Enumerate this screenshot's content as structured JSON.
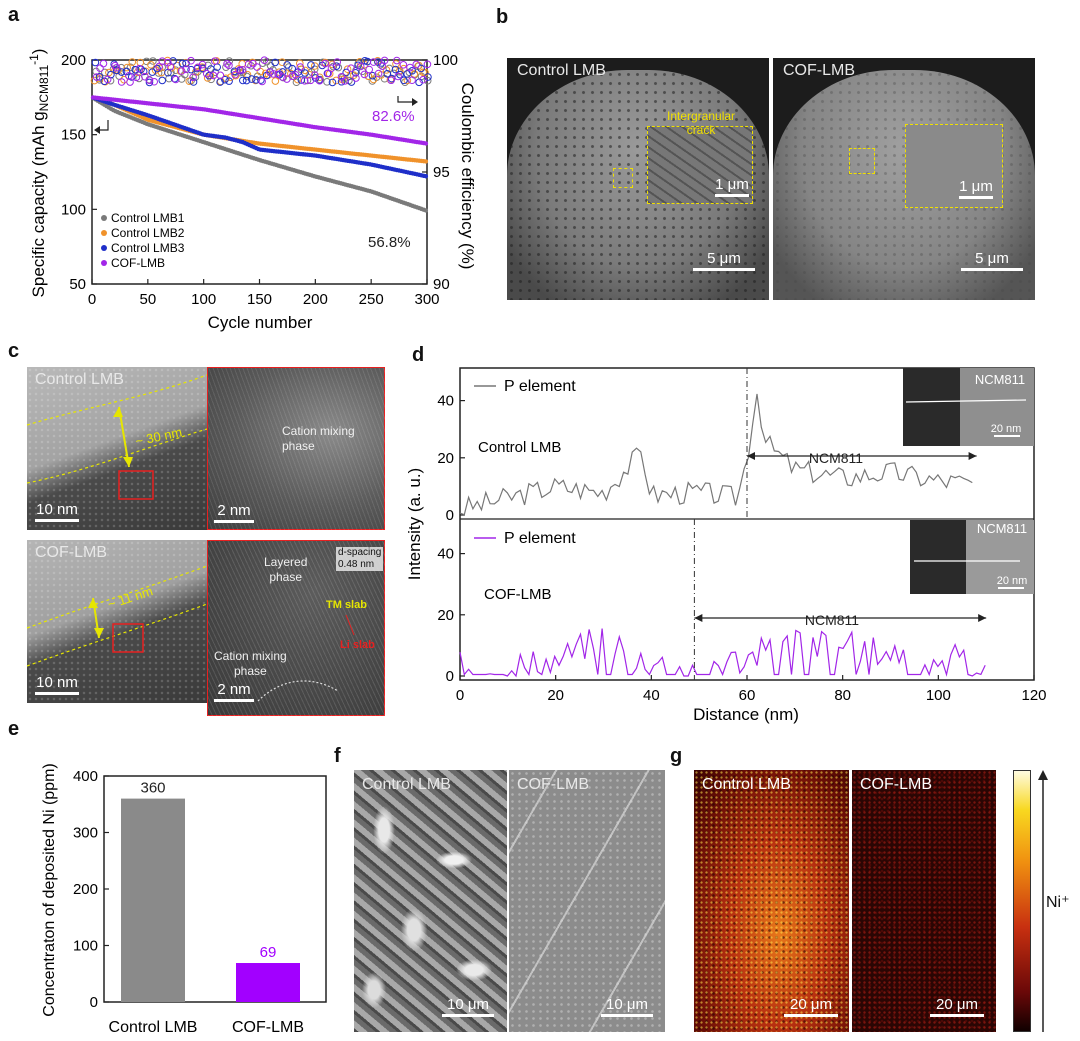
{
  "panels": {
    "a": {
      "label": "a",
      "left_axis_label": "Specific capacity (mAh g",
      "left_axis_sub": "NCM811",
      "left_axis_sup": "-1",
      "left_axis_close": ")",
      "right_axis_label": "Coulombic efficiency (%)",
      "xlabel": "Cycle number",
      "annotation_cof": "82.6%",
      "annotation_ctrl": "56.8%"
    },
    "b": {
      "label": "b",
      "left_title": "Control LMB",
      "right_title": "COF-LMB",
      "crack_label_1": "Intergranular",
      "crack_label_2": "crack",
      "inset_scale": "1 μm",
      "main_scale": "5 μm"
    },
    "c": {
      "label": "c",
      "top_title": "Control LMB",
      "top_thickness": "~ 30 nm",
      "top_scale_left": "10 nm",
      "top_scale_right": "2 nm",
      "top_phase": "Cation mixing phase",
      "bottom_title": "COF-LMB",
      "bottom_thickness": "~ 11 nm",
      "bottom_scale_left": "10 nm",
      "bottom_scale_right": "2 nm",
      "layered_phase_1": "Layered",
      "layered_phase_2": "phase",
      "dspacing_1": "d-spacing",
      "dspacing_2": "0.48 nm",
      "tm_slab": "TM slab",
      "li_slab": "Li slab",
      "cation_mixing_1": "Cation mixing",
      "cation_mixing_2": "phase"
    },
    "d": {
      "label": "d",
      "ylabel": "Intensity (a. u.)",
      "xlabel": "Distance (nm)",
      "top_legend": "P element",
      "top_sample": "Control LMB",
      "top_region": "NCM811",
      "top_inset_title": "NCM811",
      "top_inset_scale": "20 nm",
      "bottom_legend": "P element",
      "bottom_sample": "COF-LMB",
      "bottom_region": "NCM811",
      "bottom_inset_title": "NCM811",
      "bottom_inset_scale": "20 nm"
    },
    "e": {
      "label": "e",
      "ylabel": "Concentraton of deposited Ni (ppm)"
    },
    "f": {
      "label": "f",
      "left_title": "Control LMB",
      "right_title": "COF-LMB",
      "left_scale": "10 μm",
      "right_scale": "10 μm"
    },
    "g": {
      "label": "g",
      "left_title": "Control LMB",
      "right_title": "COF-LMB",
      "left_scale": "20 μm",
      "right_scale": "20 μm",
      "colorbar_label": "Ni⁺"
    }
  },
  "chart_data": [
    {
      "panel": "a",
      "type": "scatter",
      "xlim": [
        0,
        300
      ],
      "ylim": [
        50,
        200
      ],
      "y2lim": [
        90,
        100
      ],
      "xticks": [
        "0",
        "50",
        "100",
        "150",
        "200",
        "250",
        "300"
      ],
      "yticks": [
        "50",
        "100",
        "150",
        "200"
      ],
      "y2ticks": [
        "90",
        "95",
        "100"
      ],
      "series": [
        {
          "name": "Control LMB1",
          "color": "#7a7a7a",
          "x": [
            0,
            20,
            50,
            100,
            150,
            200,
            250,
            300
          ],
          "y": [
            175,
            166,
            157,
            145,
            133,
            122,
            112,
            99
          ]
        },
        {
          "name": "Control LMB2",
          "color": "#f0922b",
          "x": [
            0,
            20,
            50,
            100,
            150,
            200,
            250,
            300
          ],
          "y": [
            175,
            170,
            160,
            150,
            144,
            140,
            136,
            132
          ]
        },
        {
          "name": "Control LMB3",
          "color": "#1f2fc9",
          "x": [
            0,
            20,
            50,
            100,
            120,
            135,
            150,
            200,
            250,
            300
          ],
          "y": [
            175,
            170,
            163,
            150,
            148,
            145,
            140,
            136,
            130,
            122
          ]
        },
        {
          "name": "COF-LMB",
          "color": "#a226e8",
          "x": [
            0,
            50,
            100,
            150,
            200,
            250,
            300
          ],
          "y": [
            175,
            171,
            167,
            161,
            155,
            150,
            144
          ]
        }
      ],
      "coulombic_efficiency_band": [
        99.0,
        100.0
      ]
    },
    {
      "panel": "d",
      "type": "line",
      "xlim": [
        0,
        120
      ],
      "ylim": [
        0,
        50
      ],
      "xticks": [
        "0",
        "20",
        "40",
        "60",
        "80",
        "100",
        "120"
      ],
      "yticks": [
        "0",
        "20",
        "40"
      ],
      "series": [
        {
          "name": "Control LMB",
          "color": "#777777",
          "x": [
            0,
            10,
            20,
            30,
            38,
            40,
            50,
            58,
            60,
            62,
            64,
            70,
            80,
            90,
            100,
            108
          ],
          "y": [
            2,
            6,
            10,
            8,
            22,
            7,
            8,
            6,
            20,
            44,
            25,
            16,
            13,
            15,
            12,
            11
          ]
        },
        {
          "name": "COF-LMB",
          "color": "#a226e8",
          "x": [
            0,
            10,
            20,
            28,
            30,
            35,
            40,
            48,
            50,
            60,
            70,
            80,
            90,
            100,
            110
          ],
          "y": [
            3,
            4,
            5,
            12,
            15,
            8,
            5,
            2,
            4,
            6,
            12,
            10,
            8,
            6,
            4
          ]
        }
      ],
      "boundaries": [
        60,
        49
      ],
      "region_arrow_ranges": [
        [
          60,
          108
        ],
        [
          49,
          110
        ]
      ]
    },
    {
      "panel": "e",
      "type": "bar",
      "categories": [
        "Control LMB",
        "COF-LMB"
      ],
      "values": [
        360,
        69
      ],
      "value_labels": [
        "360",
        "69"
      ],
      "colors": [
        "#8a8a8a",
        "#a200ff"
      ],
      "ylim": [
        0,
        400
      ],
      "yticks": [
        "0",
        "100",
        "200",
        "300",
        "400"
      ]
    }
  ]
}
